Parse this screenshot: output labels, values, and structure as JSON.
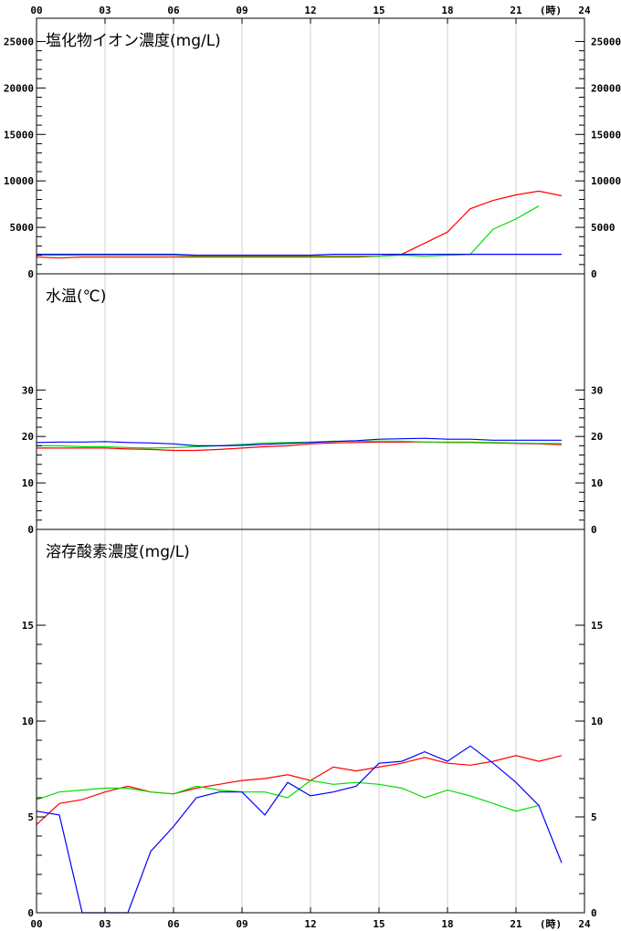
{
  "time_axis": {
    "labels": [
      "00",
      "03",
      "06",
      "09",
      "12",
      "15",
      "18",
      "21",
      "24"
    ],
    "unit": "(時)"
  },
  "chart_data": [
    {
      "type": "line",
      "title": "塩化物イオン濃度(mg/L)",
      "x": [
        0,
        1,
        2,
        3,
        4,
        5,
        6,
        7,
        8,
        9,
        10,
        11,
        12,
        13,
        14,
        15,
        16,
        17,
        18,
        19,
        20,
        21,
        22,
        23
      ],
      "xlim": [
        0,
        24
      ],
      "ylim": [
        0,
        27500
      ],
      "yticks": [
        0,
        5000,
        10000,
        15000,
        20000,
        25000
      ],
      "series": [
        {
          "color": "#ff0000",
          "values": [
            1800,
            1700,
            1800,
            1800,
            1800,
            1800,
            1800,
            1800,
            1800,
            1800,
            1800,
            1800,
            1800,
            1800,
            1800,
            1900,
            2100,
            3300,
            4500,
            7000,
            7900,
            8500,
            8900,
            8400
          ]
        },
        {
          "color": "#00dd00",
          "values": [
            2000,
            2000,
            2000,
            2000,
            2000,
            2000,
            2000,
            1900,
            1900,
            1900,
            1900,
            1900,
            1900,
            1900,
            1900,
            1900,
            2000,
            1900,
            2000,
            2100,
            4800,
            5900,
            7300,
            null
          ]
        },
        {
          "color": "#0000ff",
          "values": [
            2100,
            2100,
            2100,
            2100,
            2100,
            2100,
            2100,
            2000,
            2000,
            2000,
            2000,
            2000,
            2000,
            2100,
            2100,
            2100,
            2100,
            2100,
            2100,
            2100,
            2100,
            2100,
            2100,
            2100
          ]
        }
      ]
    },
    {
      "type": "line",
      "title": "水温(℃)",
      "x": [
        0,
        1,
        2,
        3,
        4,
        5,
        6,
        7,
        8,
        9,
        10,
        11,
        12,
        13,
        14,
        15,
        16,
        17,
        18,
        19,
        20,
        21,
        22,
        23
      ],
      "xlim": [
        0,
        24
      ],
      "ylim": [
        0,
        55
      ],
      "yticks": [
        0,
        10,
        20,
        30
      ],
      "series": [
        {
          "color": "#ff0000",
          "values": [
            17.5,
            17.5,
            17.5,
            17.5,
            17.3,
            17.2,
            17.0,
            17.0,
            17.2,
            17.5,
            17.8,
            18.0,
            18.4,
            18.6,
            18.7,
            18.8,
            18.8,
            18.8,
            18.7,
            18.7,
            18.6,
            18.5,
            18.4,
            18.2
          ]
        },
        {
          "color": "#00dd00",
          "values": [
            18.0,
            18.0,
            17.8,
            17.8,
            17.6,
            17.5,
            17.6,
            17.8,
            18.0,
            18.3,
            18.6,
            18.7,
            18.8,
            19.0,
            19.0,
            19.0,
            19.0,
            18.8,
            18.8,
            18.8,
            18.7,
            18.6,
            18.5,
            18.5
          ]
        },
        {
          "color": "#0000ff",
          "values": [
            18.7,
            18.8,
            18.8,
            18.9,
            18.7,
            18.6,
            18.4,
            18.0,
            18.0,
            18.1,
            18.3,
            18.5,
            18.7,
            18.9,
            19.1,
            19.4,
            19.5,
            19.6,
            19.4,
            19.4,
            19.2,
            19.2,
            19.2,
            19.2
          ]
        }
      ]
    },
    {
      "type": "line",
      "title": "溶存酸素濃度(mg/L)",
      "x": [
        0,
        1,
        2,
        3,
        4,
        5,
        6,
        7,
        8,
        9,
        10,
        11,
        12,
        13,
        14,
        15,
        16,
        17,
        18,
        19,
        20,
        21,
        22,
        23
      ],
      "xlim": [
        0,
        24
      ],
      "ylim": [
        0,
        20
      ],
      "yticks": [
        0,
        5,
        10,
        15
      ],
      "series": [
        {
          "color": "#ff0000",
          "values": [
            4.6,
            5.7,
            5.9,
            6.3,
            6.6,
            6.3,
            6.2,
            6.5,
            6.7,
            6.9,
            7.0,
            7.2,
            6.9,
            7.6,
            7.4,
            7.6,
            7.8,
            8.1,
            7.8,
            7.7,
            7.9,
            8.2,
            7.9,
            8.2
          ]
        },
        {
          "color": "#00dd00",
          "values": [
            5.9,
            6.3,
            6.4,
            6.5,
            6.5,
            6.3,
            6.2,
            6.6,
            6.4,
            6.3,
            6.3,
            6.0,
            6.9,
            6.7,
            6.8,
            6.7,
            6.5,
            6.0,
            6.4,
            6.1,
            5.7,
            5.3,
            5.6,
            null
          ]
        },
        {
          "color": "#0000ff",
          "values": [
            5.3,
            5.1,
            0.0,
            0.0,
            0.0,
            3.2,
            4.5,
            6.0,
            6.3,
            6.3,
            5.1,
            6.8,
            6.1,
            6.3,
            6.6,
            7.8,
            7.9,
            8.4,
            7.9,
            8.7,
            7.8,
            6.8,
            5.6,
            2.6
          ]
        }
      ]
    }
  ]
}
